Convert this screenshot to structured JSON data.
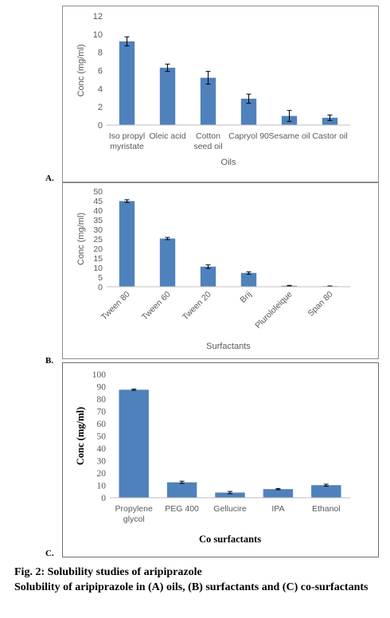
{
  "chart_data": [
    {
      "panel": "A.",
      "type": "bar",
      "categories": [
        "Iso propyl myristate",
        "Oleic acid",
        "Cotton seed oil",
        "Capryol 90",
        "Sesame oil",
        "Castor oil"
      ],
      "category_lines": [
        [
          "Iso propyl",
          "myristate"
        ],
        [
          "Oleic acid"
        ],
        [
          "Cotton",
          "seed oil"
        ],
        [
          "Capryol 90"
        ],
        [
          "Sesame oil"
        ],
        [
          "Castor oil"
        ]
      ],
      "values": [
        9.2,
        6.3,
        5.2,
        2.9,
        1.0,
        0.8
      ],
      "errors": [
        0.5,
        0.4,
        0.7,
        0.5,
        0.6,
        0.3
      ],
      "xlabel": "Oils",
      "ylabel": "Conc (mg/ml)",
      "ylim": [
        0,
        12
      ],
      "yticks": [
        0,
        2,
        4,
        6,
        8,
        10,
        12
      ],
      "grid": false,
      "color": "#4f81bd"
    },
    {
      "panel": "B.",
      "type": "bar",
      "categories": [
        "Tween 80",
        "Tween 60",
        "Tween 20",
        "Brij",
        "Plurololeique",
        "Span 80"
      ],
      "values": [
        44.8,
        25.2,
        10.5,
        7.2,
        0.5,
        0.3
      ],
      "errors": [
        0.7,
        0.6,
        0.9,
        0.6,
        0.2,
        0.1
      ],
      "xlabel": "Surfactants",
      "ylabel": "Conc (mg/ml)",
      "ylim": [
        0,
        50
      ],
      "yticks": [
        0,
        5,
        10,
        15,
        20,
        25,
        30,
        35,
        40,
        45,
        50
      ],
      "grid": false,
      "color": "#4f81bd"
    },
    {
      "panel": "C.",
      "type": "bar",
      "categories": [
        "Propylene glycol",
        "PEG 400",
        "Gellucire",
        "IPA",
        "Ethanol"
      ],
      "category_lines": [
        [
          "Propylene",
          "glycol"
        ],
        [
          "PEG 400"
        ],
        [
          "Gellucire"
        ],
        [
          "IPA"
        ],
        [
          "Ethanol"
        ]
      ],
      "values": [
        87.5,
        12.5,
        4.2,
        7.0,
        10.2
      ],
      "errors": [
        0.5,
        0.9,
        0.9,
        0.5,
        0.8
      ],
      "xlabel": "Co surfactants",
      "ylabel": "Conc (mg/ml)",
      "ylim": [
        0,
        100
      ],
      "yticks": [
        0,
        10,
        20,
        30,
        40,
        50,
        60,
        70,
        80,
        90,
        100
      ],
      "grid": false,
      "color": "#4f81bd"
    }
  ],
  "caption": {
    "fig_title": "Fig. 2: Solubility studies of aripiprazole",
    "text": "Solubility of aripiprazole in (A) oils, (B) surfactants and (C) co-surfactants"
  }
}
